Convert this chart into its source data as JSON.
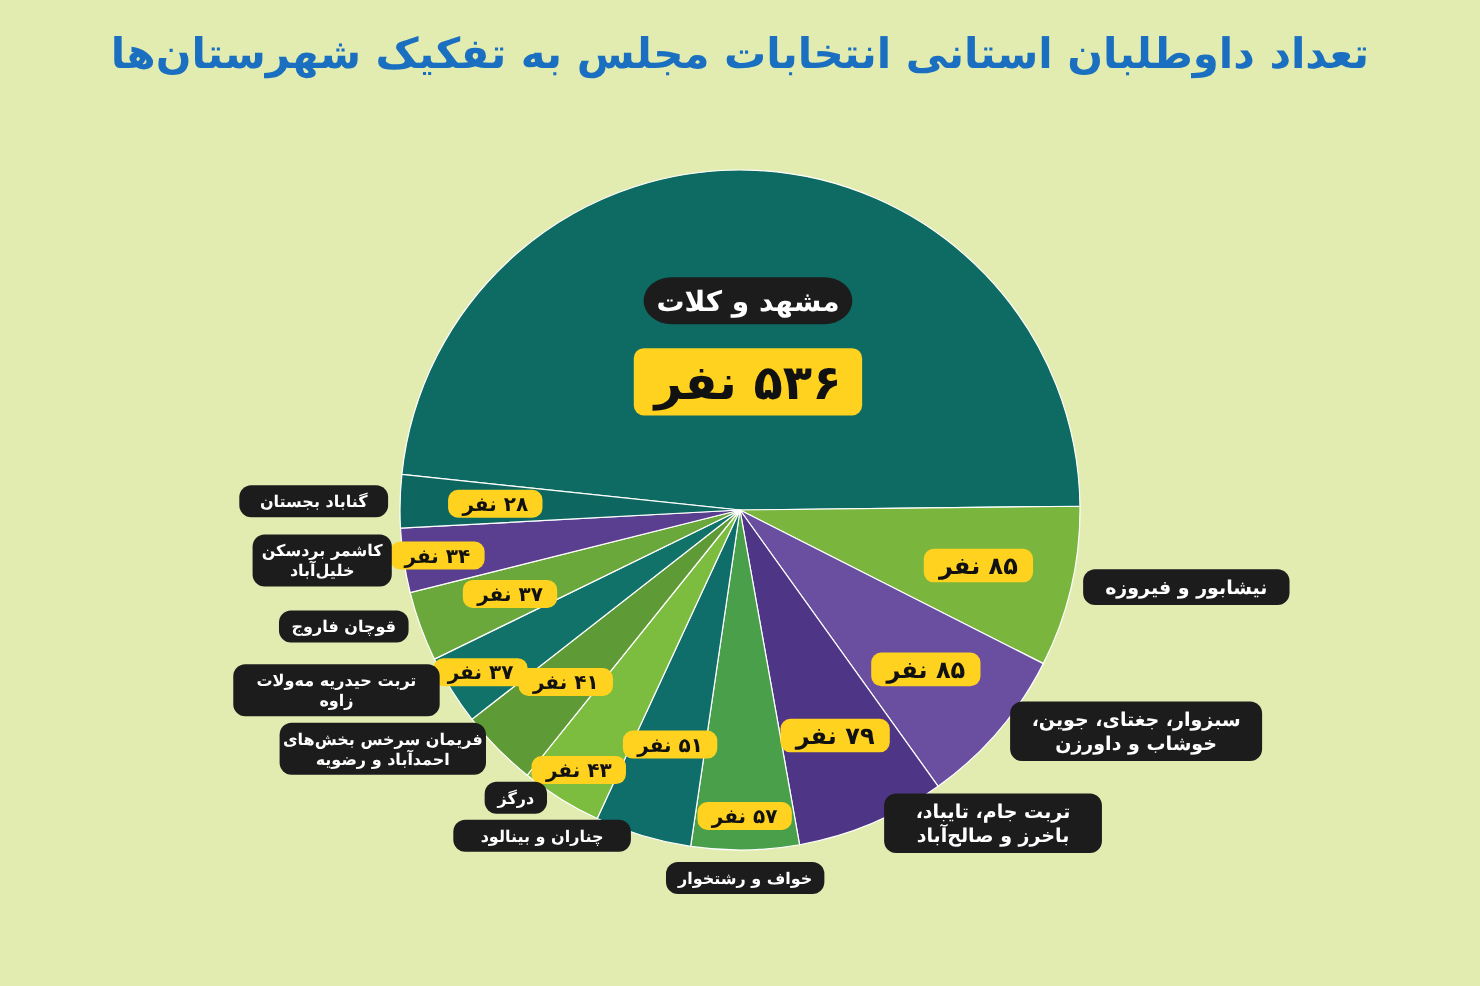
{
  "chart_data": {
    "type": "pie",
    "title": "تعداد داوطلبان استانی انتخابات مجلس به تفکیک شهرستان‌ها",
    "categories": [
      "مشهد و کلات",
      "نیشابور و فیروزه",
      "سبزوار، جغتای، جوین، خوشاب و داورزن",
      "تربت جام، تایباد، باخرز و صالح‌آباد",
      "خواف و رشتخوار",
      "چناران و بینالود",
      "درگز",
      "فریمان سرخس بخش‌های احمدآباد و رضویه",
      "تربت حیدریه مه‌ولات زاوه",
      "قوچان فاروج",
      "کاشمر بردسکن خلیل‌آباد",
      "گناباد بجستان"
    ],
    "values": [
      536,
      85,
      85,
      79,
      57,
      51,
      43,
      41,
      37,
      37,
      34,
      28
    ],
    "colors": [
      "#0e6b63",
      "#7ab53e",
      "#6a4fa0",
      "#4f3586",
      "#4aa04a",
      "#0f6e6a",
      "#7cbd3f",
      "#5e9a35",
      "#107268",
      "#6aa83c",
      "#5a3f90",
      "#0d6660"
    ],
    "value_labels": [
      "۵۳۶ نفر",
      "۸۵ نفر",
      "۸۵ نفر",
      "۷۹ نفر",
      "۵۷ نفر",
      "۵۱ نفر",
      "۴۳ نفر",
      "۴۱ نفر",
      "۳۷ نفر",
      "۳۷ نفر",
      "۳۴ نفر",
      "۲۸ نفر"
    ]
  }
}
